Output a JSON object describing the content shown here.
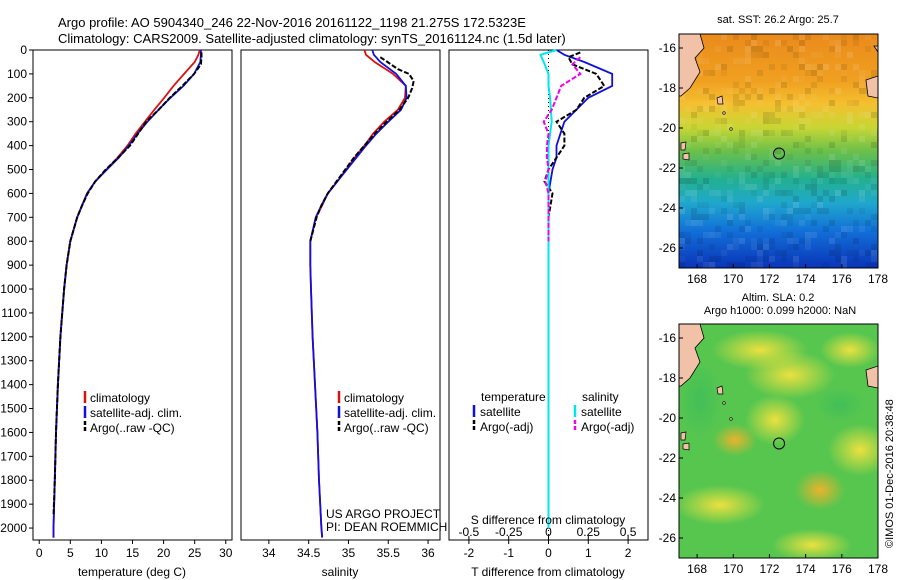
{
  "header": {
    "line1": "Argo profile: AO 5904340_246 22-Nov-2016 20161122_1198 21.275S 172.5323E",
    "line2": "Climatology: CARS2009. Satellite-adjusted climatology: synTS_20161124.nc (1.5d later)"
  },
  "colors": {
    "climatology": "#dd1010",
    "satellite": "#1010dd",
    "argo": "#000000",
    "sal_sat": "#00e5ee",
    "sal_argo": "#ee00ee"
  },
  "chart_data": [
    {
      "type": "line",
      "panel": "temperature",
      "xlabel": "temperature (deg C)",
      "ylabel": "",
      "xlim": [
        -1,
        31
      ],
      "ylim": [
        2050,
        0
      ],
      "y_reversed": true,
      "xticks": [
        "0",
        "5",
        "10",
        "15",
        "20",
        "25",
        "30"
      ],
      "yticks": [
        "0",
        "100",
        "200",
        "300",
        "400",
        "500",
        "600",
        "700",
        "800",
        "900",
        "1000",
        "1100",
        "1200",
        "1300",
        "1400",
        "1500",
        "1600",
        "1700",
        "1800",
        "1900",
        "2000"
      ],
      "legend": [
        "climatology",
        "satellite-adj. clim.",
        "Argo(..raw -QC)"
      ],
      "legend_placement": "lower-center",
      "series": [
        {
          "name": "climatology",
          "depth": [
            0,
            20,
            50,
            100,
            150,
            200,
            250,
            300,
            350,
            400,
            450,
            500,
            550,
            600,
            650,
            700,
            800,
            900,
            1000,
            1200,
            1400,
            1600,
            1800,
            2000,
            2040
          ],
          "values": [
            25.8,
            25.6,
            25.0,
            23.3,
            21.6,
            20.1,
            18.5,
            17.0,
            15.5,
            14.2,
            12.6,
            10.8,
            9.0,
            7.7,
            6.9,
            6.1,
            5.0,
            4.4,
            4.0,
            3.4,
            3.0,
            2.7,
            2.5,
            2.3,
            2.3
          ]
        },
        {
          "name": "satellite-adj. clim.",
          "depth": [
            0,
            20,
            50,
            100,
            150,
            200,
            250,
            300,
            350,
            400,
            450,
            500,
            550,
            600,
            650,
            700,
            800,
            900,
            1000,
            1200,
            1400,
            1600,
            1800,
            2000,
            2040
          ],
          "values": [
            26.0,
            26.0,
            25.9,
            24.9,
            23.2,
            21.1,
            19.2,
            17.4,
            15.8,
            14.4,
            12.8,
            10.9,
            9.0,
            7.7,
            6.9,
            6.1,
            5.0,
            4.4,
            4.0,
            3.4,
            3.0,
            2.7,
            2.5,
            2.3,
            2.3
          ]
        },
        {
          "name": "Argo(..raw -QC)",
          "depth": [
            10,
            30,
            60,
            100,
            150,
            200,
            250,
            300,
            350,
            400,
            450,
            500,
            550,
            600,
            650,
            700,
            800,
            900,
            1000,
            1200,
            1400,
            1600,
            1800,
            1950
          ],
          "values": [
            26.1,
            26.1,
            26.0,
            24.9,
            23.0,
            21.0,
            19.2,
            17.2,
            15.9,
            14.6,
            12.7,
            10.7,
            9.0,
            7.8,
            6.9,
            6.1,
            5.0,
            4.4,
            4.0,
            3.4,
            3.0,
            2.7,
            2.5,
            2.3
          ]
        }
      ]
    },
    {
      "type": "line",
      "panel": "salinity",
      "xlabel": "salinity",
      "xlim": [
        33.65,
        36.15
      ],
      "ylim": [
        2050,
        0
      ],
      "y_reversed": true,
      "xticks": [
        "34",
        "34.5",
        "35",
        "35.5",
        "36"
      ],
      "legend": [
        "climatology",
        "satellite-adj. clim.",
        "Argo(..raw -QC)"
      ],
      "legend_placement": "lower-center",
      "annotation": [
        "US ARGO PROJECT",
        "PI: DEAN ROEMMICH"
      ],
      "series": [
        {
          "name": "climatology",
          "depth": [
            0,
            20,
            50,
            100,
            150,
            200,
            250,
            300,
            350,
            400,
            450,
            500,
            550,
            600,
            650,
            700,
            800,
            900,
            1000,
            1200,
            1400,
            1600,
            1800,
            2000,
            2040
          ],
          "values": [
            35.2,
            35.22,
            35.33,
            35.56,
            35.72,
            35.71,
            35.62,
            35.45,
            35.31,
            35.2,
            35.08,
            34.97,
            34.86,
            34.74,
            34.67,
            34.59,
            34.52,
            34.52,
            34.53,
            34.55,
            34.58,
            34.61,
            34.63,
            34.66,
            34.67
          ]
        },
        {
          "name": "satellite-adj. clim.",
          "depth": [
            0,
            20,
            50,
            100,
            150,
            200,
            250,
            300,
            350,
            400,
            450,
            500,
            550,
            600,
            650,
            700,
            800,
            900,
            1000,
            1200,
            1400,
            1600,
            1800,
            2000,
            2040
          ],
          "values": [
            35.3,
            35.32,
            35.4,
            35.6,
            35.72,
            35.73,
            35.66,
            35.5,
            35.35,
            35.22,
            35.1,
            34.98,
            34.86,
            34.74,
            34.66,
            34.59,
            34.52,
            34.52,
            34.53,
            34.55,
            34.58,
            34.61,
            34.63,
            34.66,
            34.67
          ]
        },
        {
          "name": "Argo(..raw -QC)",
          "depth": [
            30,
            50,
            80,
            100,
            130,
            160,
            200,
            250,
            300,
            350,
            400,
            450,
            500,
            550,
            600,
            650,
            700,
            800
          ],
          "values": [
            35.4,
            35.49,
            35.62,
            35.76,
            35.82,
            35.8,
            35.75,
            35.64,
            35.48,
            35.33,
            35.2,
            35.07,
            34.96,
            34.85,
            34.74,
            34.66,
            34.6,
            34.52
          ]
        }
      ]
    },
    {
      "type": "line",
      "panel": "difference",
      "xlabel": "T difference from climatology",
      "xlabel_top": "S difference from climatology",
      "xlim": [
        -2.5,
        2.5
      ],
      "ylim": [
        2050,
        0
      ],
      "y_reversed": true,
      "xticks": [
        "-2",
        "-1",
        "0",
        "1",
        "2"
      ],
      "xticks_top": [
        "-0.5",
        "-0.25",
        "0",
        "0.25",
        "0.5"
      ],
      "legend_groups": [
        {
          "title": "temperature",
          "items": [
            "satellite",
            "Argo(-adj)"
          ]
        },
        {
          "title": "salinity",
          "items": [
            "satellite",
            "Argo(-adj)"
          ]
        }
      ],
      "series": [
        {
          "name": "temperature satellite",
          "depth": [
            0,
            20,
            50,
            100,
            150,
            200,
            250,
            300,
            350,
            400,
            450,
            500,
            600,
            700,
            800,
            900,
            1000,
            1500,
            2000
          ],
          "values": [
            0.2,
            0.4,
            0.9,
            1.6,
            1.6,
            1.0,
            0.7,
            0.4,
            0.3,
            0.2,
            0.2,
            0.1,
            0.0,
            0.0,
            0.0,
            0.0,
            0.0,
            0.0,
            0.0
          ]
        },
        {
          "name": "temperature Argo(-adj)",
          "depth": [
            10,
            30,
            60,
            100,
            150,
            200,
            250,
            300,
            350,
            400,
            450,
            500,
            550,
            600,
            700,
            800,
            900,
            1000,
            1200,
            1400,
            1600,
            1800,
            1950
          ],
          "values": [
            0.8,
            0.5,
            0.6,
            1.2,
            1.4,
            0.9,
            0.7,
            0.2,
            0.4,
            0.4,
            0.2,
            0.0,
            -0.1,
            0.1,
            0.0,
            0.0,
            0.0,
            0.0,
            0.0,
            0.0,
            0.0,
            0.0,
            0.0
          ]
        },
        {
          "name": "salinity satellite",
          "depth": [
            0,
            20,
            50,
            100,
            150,
            200,
            300,
            400,
            500,
            700,
            1000,
            1500,
            2000
          ],
          "values": [
            0.05,
            -0.05,
            -0.03,
            0.0,
            0.0,
            0.01,
            0.02,
            0.0,
            0.0,
            0.0,
            0.0,
            0.0,
            0.0
          ]
        },
        {
          "name": "salinity Argo(-adj)",
          "depth": [
            30,
            60,
            100,
            150,
            200,
            250,
            300,
            350,
            400,
            450,
            500,
            550,
            600,
            700,
            800
          ],
          "values": [
            0.2,
            0.15,
            0.2,
            0.08,
            0.05,
            0.02,
            -0.03,
            0.0,
            -0.01,
            -0.01,
            0.0,
            -0.02,
            0.0,
            0.0,
            0.0
          ]
        }
      ]
    },
    {
      "type": "heatmap",
      "panel": "sst-map",
      "title": "sat. SST: 26.2  Argo: 25.7",
      "xlim": [
        167,
        178
      ],
      "ylim": [
        -27,
        -15.3
      ],
      "xticks": [
        "168",
        "170",
        "172",
        "174",
        "176",
        "178"
      ],
      "yticks": [
        "-16",
        "-18",
        "-20",
        "-22",
        "-24",
        "-26"
      ],
      "marker": {
        "lon": 172.53,
        "lat": -21.275
      }
    },
    {
      "type": "heatmap",
      "panel": "sla-map",
      "title": [
        "Altim. SLA: 0.2",
        "Argo h1000: 0.099 h2000: NaN"
      ],
      "xlim": [
        167,
        178
      ],
      "ylim": [
        -27,
        -15.3
      ],
      "xticks": [
        "168",
        "170",
        "172",
        "174",
        "176",
        "178"
      ],
      "yticks": [
        "-16",
        "-18",
        "-20",
        "-22",
        "-24",
        "-26"
      ],
      "marker": {
        "lon": 172.53,
        "lat": -21.275
      }
    }
  ],
  "credit": "©IMOS 01-Dec-2016 20:38:48"
}
